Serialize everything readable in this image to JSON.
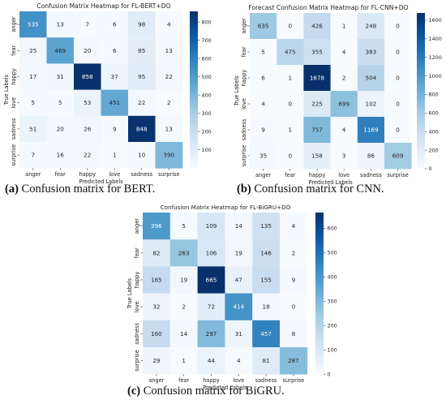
{
  "chart_data": [
    {
      "type": "heatmap",
      "title": "Confusion Matrix Heatmap for FL-BERT+DO",
      "xlabel": "Predicted Labels",
      "ylabel": "True Labels",
      "x_categories": [
        "anger",
        "fear",
        "happy",
        "love",
        "sadness",
        "surprise"
      ],
      "y_categories": [
        "anger",
        "fear",
        "happy",
        "love",
        "sadness",
        "surprise"
      ],
      "values": [
        [
          535,
          13,
          7,
          6,
          98,
          4
        ],
        [
          25,
          469,
          20,
          6,
          85,
          13
        ],
        [
          17,
          31,
          858,
          37,
          95,
          22
        ],
        [
          5,
          5,
          53,
          451,
          22,
          2
        ],
        [
          51,
          20,
          26,
          9,
          848,
          13
        ],
        [
          7,
          16,
          22,
          1,
          10,
          390
        ]
      ],
      "colorbar": {
        "min": 0,
        "max": 858,
        "ticks": [
          100,
          200,
          300,
          400,
          500,
          600,
          700,
          800
        ]
      },
      "colormap": "Blues",
      "caption": {
        "label": "(a)",
        "text": " Confusion matrix for BERT."
      }
    },
    {
      "type": "heatmap",
      "title": "Forecast Confusion Matrix Heatmap for FL-CNN+DO",
      "xlabel": "Predicted Labels",
      "ylabel": "True Labels",
      "x_categories": [
        "anger",
        "fear",
        "happy",
        "love",
        "sadness",
        "surprise"
      ],
      "y_categories": [
        "anger",
        "fear",
        "happy",
        "love",
        "sadness",
        "surprise"
      ],
      "values": [
        [
          635,
          0,
          426,
          1,
          248,
          0
        ],
        [
          5,
          475,
          355,
          4,
          383,
          0
        ],
        [
          6,
          1,
          1678,
          2,
          504,
          0
        ],
        [
          4,
          0,
          225,
          699,
          102,
          0
        ],
        [
          9,
          1,
          757,
          4,
          1169,
          0
        ],
        [
          35,
          0,
          158,
          3,
          86,
          609
        ]
      ],
      "colorbar": {
        "min": 0,
        "max": 1678,
        "ticks": [
          0,
          200,
          400,
          600,
          800,
          1000,
          1200,
          1400,
          1600
        ]
      },
      "colormap": "Blues",
      "caption": {
        "label": "(b)",
        "text": " Confusion matrix for CNN."
      }
    },
    {
      "type": "heatmap",
      "title": "Confusion Matrix Heatmap for FL-BiGRU+DO",
      "xlabel": "Predicted Labels",
      "ylabel": "True Labels",
      "x_categories": [
        "anger",
        "fear",
        "happy",
        "love",
        "sadness",
        "surprise"
      ],
      "y_categories": [
        "anger",
        "fear",
        "happy",
        "love",
        "sadness",
        "surprise"
      ],
      "values": [
        [
          396,
          5,
          109,
          14,
          135,
          4
        ],
        [
          82,
          263,
          106,
          19,
          146,
          2
        ],
        [
          165,
          19,
          665,
          47,
          155,
          9
        ],
        [
          32,
          2,
          72,
          414,
          18,
          0
        ],
        [
          160,
          14,
          297,
          31,
          457,
          8
        ],
        [
          29,
          1,
          44,
          4,
          81,
          287
        ]
      ],
      "colorbar": {
        "min": 0,
        "max": 665,
        "ticks": [
          0,
          100,
          200,
          300,
          400,
          500,
          600
        ]
      },
      "colormap": "Blues",
      "caption": {
        "label": "(c)",
        "text": " Confusion matrix for BiGRU."
      }
    }
  ]
}
